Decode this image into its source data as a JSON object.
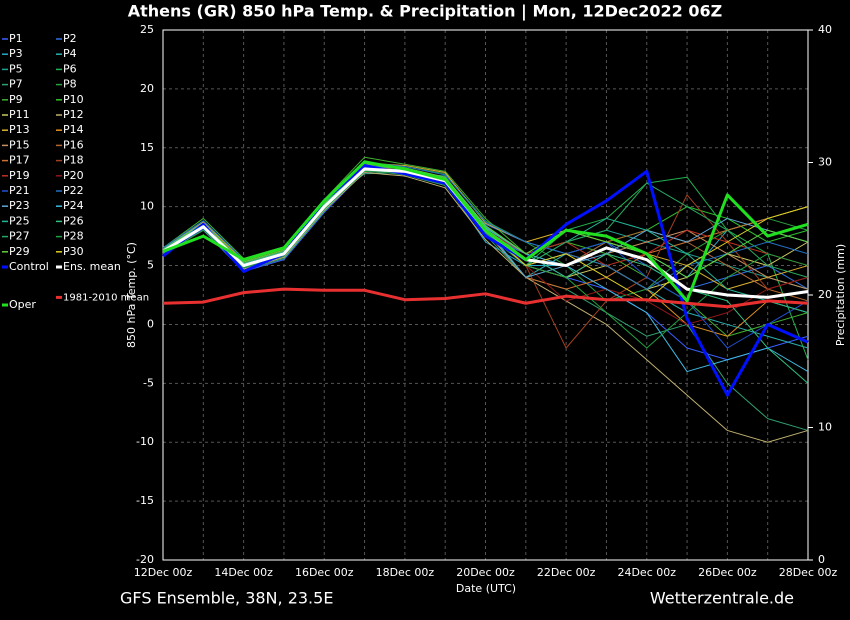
{
  "chart_data": {
    "type": "line",
    "title": "Athens  (GR)  850 hPa Temp. & Precipitation | Mon, 12Dec2022 06Z",
    "xlabel": "Date (UTC)",
    "ylabel": "850 hPa Temp. (°C)",
    "y2label": "Precipitation (mm)",
    "footer_left": "GFS Ensemble, 38N, 23.5E",
    "footer_right": "Wetterzentrale.de",
    "x": [
      "12Dec 00z",
      null,
      "14Dec 00z",
      null,
      "16Dec 00z",
      null,
      "18Dec 00z",
      null,
      "20Dec 00z",
      null,
      "22Dec 00z",
      null,
      "24Dec 00z",
      null,
      "26Dec 00z",
      null,
      "28Dec 00z"
    ],
    "ylim": [
      -20,
      25
    ],
    "yticks": [
      -20,
      -15,
      -10,
      -5,
      0,
      5,
      10,
      15,
      20,
      25
    ],
    "y2lim": [
      0,
      40
    ],
    "y2ticks": [
      0,
      10,
      20,
      30,
      40
    ],
    "grid": true,
    "series": [
      {
        "name": "P1",
        "color": "#3a5fff",
        "values": [
          6,
          8,
          4.5,
          5.5,
          9.5,
          13,
          13.2,
          12.5,
          7.5,
          6,
          4,
          3,
          1,
          -2,
          -3,
          -2,
          -1
        ]
      },
      {
        "name": "P2",
        "color": "#2f6fe0",
        "values": [
          6.5,
          8.8,
          5.5,
          6.5,
          10.5,
          13.5,
          12.8,
          12,
          8.5,
          7,
          6,
          7,
          5,
          3,
          4,
          5,
          3
        ]
      },
      {
        "name": "P3",
        "color": "#2aa6c8",
        "values": [
          6,
          8,
          5,
          6,
          10,
          13,
          13,
          12,
          7,
          5,
          5,
          7,
          6,
          4,
          8,
          9,
          10
        ]
      },
      {
        "name": "P4",
        "color": "#2ab0b0",
        "values": [
          6.4,
          8.5,
          4.8,
          5.8,
          9.8,
          13.6,
          13.3,
          12.4,
          8.2,
          4,
          6,
          5,
          3,
          1,
          0,
          -1,
          -2
        ]
      },
      {
        "name": "P5",
        "color": "#1fa090",
        "values": [
          6.1,
          8.1,
          5.2,
          6.2,
          10.2,
          12.8,
          12.9,
          12.6,
          7.8,
          6,
          7,
          8,
          7,
          6,
          5,
          4,
          3
        ]
      },
      {
        "name": "P6",
        "color": "#22b050",
        "values": [
          6.3,
          8.6,
          5.1,
          6.1,
          10.4,
          13.9,
          13.1,
          12.2,
          8.4,
          5,
          8,
          9,
          12,
          12.5,
          8,
          6,
          -3
        ]
      },
      {
        "name": "P7",
        "color": "#30a070",
        "values": [
          6,
          8.2,
          4.6,
          5.6,
          9.6,
          13.1,
          12.7,
          11.8,
          7.6,
          4,
          3,
          1,
          -1,
          0,
          -5,
          -8,
          -9
        ]
      },
      {
        "name": "P8",
        "color": "#28a040",
        "values": [
          6.2,
          8.4,
          5.3,
          6.3,
          10.1,
          13.4,
          13.4,
          12.8,
          8.8,
          7,
          5,
          2,
          3,
          6,
          8,
          9,
          8
        ]
      },
      {
        "name": "P9",
        "color": "#40b030",
        "values": [
          6.5,
          9,
          5.6,
          6.6,
          10.6,
          14.2,
          13.6,
          13,
          9,
          6,
          7,
          6,
          4,
          2,
          -1,
          0,
          1
        ]
      },
      {
        "name": "P10",
        "color": "#30c030",
        "values": [
          6,
          8,
          4.9,
          5.9,
          9.9,
          13,
          12.9,
          12.1,
          7.9,
          5,
          6,
          7,
          8,
          10,
          9,
          7,
          8
        ]
      },
      {
        "name": "P11",
        "color": "#c8c860",
        "values": [
          6.3,
          8.3,
          5,
          6,
          10,
          13.2,
          13,
          12.2,
          8,
          5,
          4,
          5,
          3,
          4,
          6,
          5,
          7
        ]
      },
      {
        "name": "P12",
        "color": "#c0b070",
        "values": [
          6.1,
          8.1,
          4.7,
          5.7,
          9.7,
          12.9,
          12.6,
          11.6,
          7.2,
          4,
          2,
          0,
          -3,
          -6,
          -9,
          -10,
          -9
        ]
      },
      {
        "name": "P13",
        "color": "#d8b030",
        "values": [
          6.4,
          8.7,
          5.4,
          6.4,
          10.3,
          13.7,
          13.5,
          12.9,
          8.6,
          7,
          8,
          7,
          6,
          5,
          3,
          4,
          5
        ]
      },
      {
        "name": "P14",
        "color": "#e09020",
        "values": [
          6.2,
          8.4,
          5,
          6,
          10,
          13.3,
          13.1,
          12.3,
          8.1,
          5,
          6,
          5,
          3,
          0,
          -1,
          2,
          1
        ]
      },
      {
        "name": "P15",
        "color": "#c89060",
        "values": [
          6,
          8,
          4.8,
          5.8,
          9.8,
          13,
          12.8,
          12,
          7.8,
          5,
          4,
          6,
          7,
          8,
          6,
          4,
          3
        ]
      },
      {
        "name": "P16",
        "color": "#b06830",
        "values": [
          6.3,
          8.6,
          5.2,
          6.2,
          10.2,
          13.5,
          13.2,
          12.4,
          8.3,
          6,
          5,
          7,
          8,
          7,
          5,
          3,
          2
        ]
      },
      {
        "name": "P17",
        "color": "#d07030",
        "values": [
          6.2,
          8.2,
          5.1,
          6.1,
          10.1,
          13.1,
          12.9,
          12.1,
          7.9,
          4,
          3,
          4,
          6,
          7,
          8,
          9,
          10
        ]
      },
      {
        "name": "P18",
        "color": "#a04020",
        "values": [
          6.4,
          8.4,
          4.9,
          5.9,
          9.9,
          13.4,
          13.2,
          12.2,
          8.1,
          5,
          -2,
          2,
          4,
          11,
          7,
          3,
          4
        ]
      },
      {
        "name": "P19",
        "color": "#c03020",
        "values": [
          6.1,
          8.3,
          5,
          6,
          10,
          13.2,
          13,
          12.2,
          8,
          6,
          7,
          5,
          6,
          8,
          7,
          6,
          5
        ]
      },
      {
        "name": "P20",
        "color": "#901818",
        "values": [
          6.2,
          8.5,
          5.3,
          6.3,
          10.3,
          13.6,
          13.3,
          12.5,
          8.4,
          5,
          2,
          3,
          2,
          0,
          1,
          3,
          4
        ]
      },
      {
        "name": "P21",
        "color": "#2050d0",
        "values": [
          6,
          8.1,
          4.8,
          5.8,
          9.8,
          13,
          12.8,
          11.9,
          7.7,
          5,
          6,
          7,
          4,
          2,
          -2,
          0,
          2
        ]
      },
      {
        "name": "P22",
        "color": "#2070c0",
        "values": [
          6.5,
          8.8,
          5.5,
          6.5,
          10.5,
          13.8,
          13.4,
          12.7,
          8.7,
          7,
          6,
          5,
          3,
          5,
          6,
          7,
          6
        ]
      },
      {
        "name": "P23",
        "color": "#60a8d8",
        "values": [
          6.2,
          8.3,
          5,
          6,
          10,
          13.2,
          13,
          12.2,
          8,
          4,
          5,
          6,
          8,
          7,
          9,
          8,
          7
        ]
      },
      {
        "name": "P24",
        "color": "#40b8e0",
        "values": [
          6.3,
          8.5,
          5.1,
          6.1,
          10.1,
          13.3,
          13.1,
          12.3,
          8.2,
          6,
          5,
          3,
          1,
          -4,
          -3,
          -2,
          -4
        ]
      },
      {
        "name": "P25",
        "color": "#20b898",
        "values": [
          6.1,
          8.2,
          4.9,
          5.9,
          9.9,
          13.1,
          12.9,
          12.1,
          7.9,
          5,
          7,
          9,
          8,
          6,
          3,
          2,
          1
        ]
      },
      {
        "name": "P26",
        "color": "#30c080",
        "values": [
          6.4,
          8.6,
          5.2,
          6.2,
          10.2,
          13.5,
          13.2,
          12.4,
          8.3,
          6,
          4,
          6,
          5,
          3,
          2,
          -2,
          -5
        ]
      },
      {
        "name": "P27",
        "color": "#28a860",
        "values": [
          6.2,
          8.4,
          5,
          6,
          10,
          13.2,
          13,
          12.2,
          8,
          5,
          7,
          8,
          12,
          10,
          8,
          5,
          4
        ]
      },
      {
        "name": "P28",
        "color": "#20a040",
        "values": [
          6,
          8,
          4.8,
          5.8,
          9.8,
          13,
          12.8,
          12,
          7.8,
          5,
          4,
          1,
          -2,
          1,
          4,
          6,
          5
        ]
      },
      {
        "name": "P29",
        "color": "#60d040",
        "values": [
          6.3,
          8.5,
          5.3,
          6.3,
          10.3,
          13.6,
          13.3,
          12.5,
          8.4,
          6,
          8,
          7,
          6,
          4,
          6,
          8,
          7
        ]
      },
      {
        "name": "P30",
        "color": "#e0d020",
        "values": [
          6.2,
          8.3,
          5,
          6,
          10,
          13.2,
          13,
          12.2,
          8,
          5,
          6,
          4,
          2,
          5,
          7,
          9,
          10
        ]
      },
      {
        "name": "Control",
        "color": "#0010ff",
        "values": [
          5.8,
          8.5,
          4.5,
          6,
          10.5,
          13.5,
          12.8,
          12,
          7.5,
          5.5,
          8.5,
          10.5,
          13,
          0.5,
          -6,
          0,
          -1.5
        ]
      },
      {
        "name": "Ens. mean",
        "color": "#ffffff",
        "values": [
          6.2,
          8.3,
          5,
          6,
          10,
          13.2,
          13,
          12.2,
          8,
          5.5,
          5,
          6.5,
          5.5,
          3,
          2.5,
          2.3,
          2.8
        ]
      },
      {
        "name": "1981-2010 mean",
        "color": "#e83030",
        "values": [
          1.8,
          1.9,
          2.7,
          3,
          2.9,
          2.9,
          2.1,
          2.2,
          2.6,
          1.8,
          2.4,
          2.1,
          2.1,
          1.8,
          1.5,
          2,
          1.8
        ]
      },
      {
        "name": "Oper",
        "color": "#20e020",
        "values": [
          6.2,
          7.5,
          5.5,
          6.5,
          10.5,
          13.8,
          13.2,
          12.3,
          8,
          5.5,
          8,
          7.5,
          6,
          2,
          11,
          7.5,
          8.5
        ]
      }
    ]
  }
}
